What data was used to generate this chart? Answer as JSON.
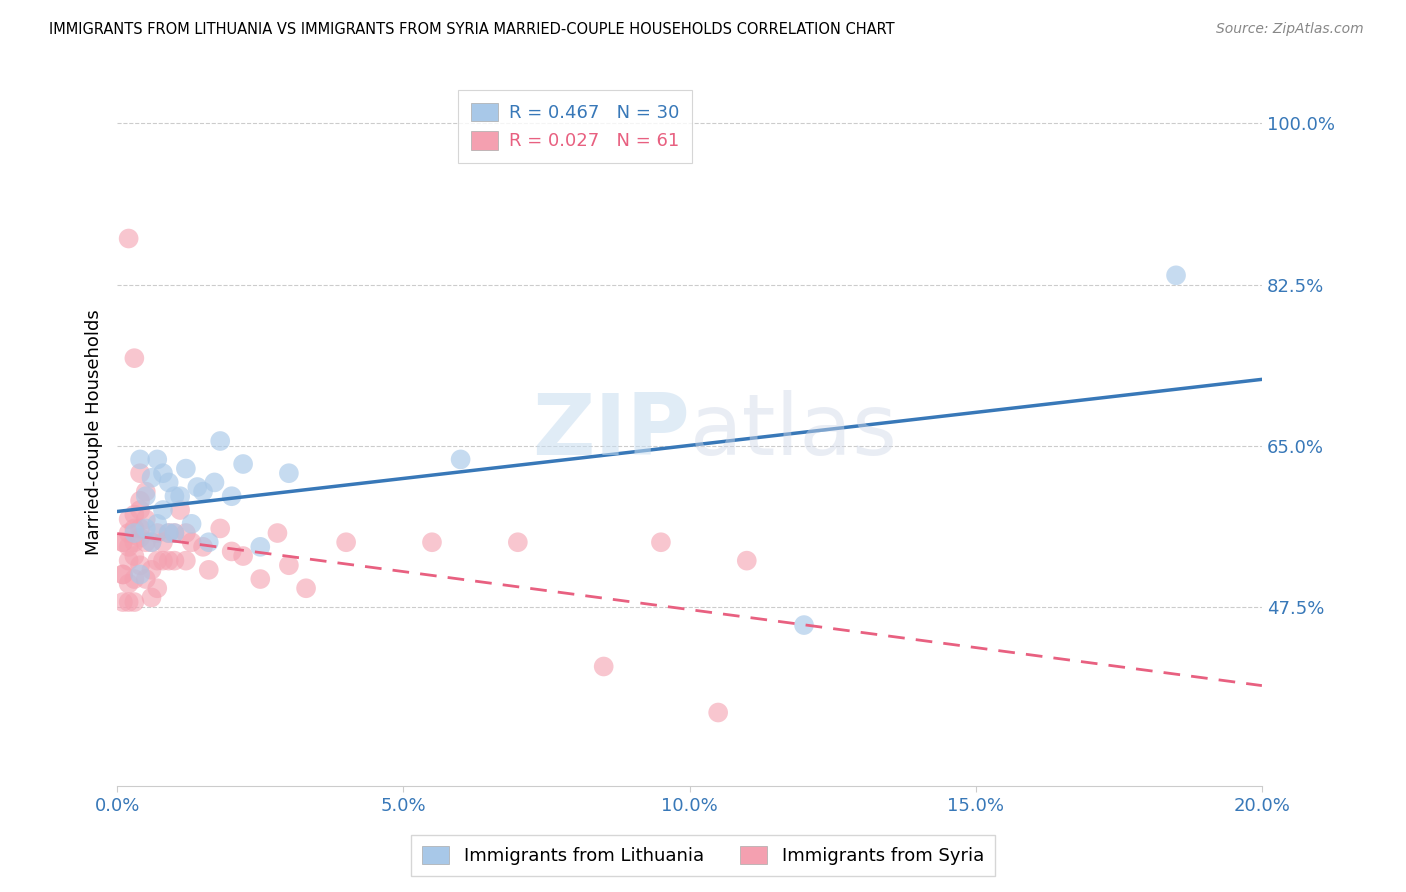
{
  "title": "IMMIGRANTS FROM LITHUANIA VS IMMIGRANTS FROM SYRIA MARRIED-COUPLE HOUSEHOLDS CORRELATION CHART",
  "source": "Source: ZipAtlas.com",
  "ylabel": "Married-couple Households",
  "xmin": 0.0,
  "xmax": 0.2,
  "ymin": 0.28,
  "ymax": 1.05,
  "ylabel_right_ticks": [
    1.0,
    0.825,
    0.65,
    0.475
  ],
  "ylabel_right_labels": [
    "100.0%",
    "82.5%",
    "65.0%",
    "47.5%"
  ],
  "xtick_labels": [
    "0.0%",
    "5.0%",
    "10.0%",
    "15.0%",
    "20.0%"
  ],
  "xtick_positions": [
    0.0,
    0.05,
    0.1,
    0.15,
    0.2
  ],
  "legend_R_blue": "R = 0.467",
  "legend_N_blue": "N = 30",
  "legend_R_pink": "R = 0.027",
  "legend_N_pink": "N = 61",
  "blue_color": "#a8c8e8",
  "pink_color": "#f4a0b0",
  "blue_line_color": "#3878b8",
  "pink_line_color": "#e86080",
  "watermark_zip": "ZIP",
  "watermark_atlas": "atlas",
  "lithuania_x": [
    0.003,
    0.004,
    0.004,
    0.005,
    0.005,
    0.006,
    0.006,
    0.007,
    0.007,
    0.008,
    0.008,
    0.009,
    0.009,
    0.01,
    0.01,
    0.011,
    0.012,
    0.013,
    0.014,
    0.015,
    0.016,
    0.017,
    0.018,
    0.02,
    0.022,
    0.025,
    0.03,
    0.06,
    0.12,
    0.185
  ],
  "lithuania_y": [
    0.555,
    0.635,
    0.51,
    0.595,
    0.56,
    0.615,
    0.545,
    0.635,
    0.565,
    0.62,
    0.58,
    0.555,
    0.61,
    0.595,
    0.555,
    0.595,
    0.625,
    0.565,
    0.605,
    0.6,
    0.545,
    0.61,
    0.655,
    0.595,
    0.63,
    0.54,
    0.62,
    0.635,
    0.455,
    0.835
  ],
  "syria_x": [
    0.001,
    0.001,
    0.001,
    0.001,
    0.001,
    0.002,
    0.002,
    0.002,
    0.002,
    0.002,
    0.002,
    0.002,
    0.003,
    0.003,
    0.003,
    0.003,
    0.003,
    0.003,
    0.003,
    0.004,
    0.004,
    0.004,
    0.004,
    0.004,
    0.004,
    0.005,
    0.005,
    0.005,
    0.005,
    0.006,
    0.006,
    0.006,
    0.007,
    0.007,
    0.007,
    0.008,
    0.008,
    0.009,
    0.009,
    0.01,
    0.01,
    0.011,
    0.012,
    0.012,
    0.013,
    0.015,
    0.016,
    0.018,
    0.02,
    0.022,
    0.025,
    0.028,
    0.03,
    0.033,
    0.04,
    0.055,
    0.07,
    0.085,
    0.095,
    0.105,
    0.11
  ],
  "syria_y": [
    0.545,
    0.51,
    0.48,
    0.545,
    0.51,
    0.555,
    0.525,
    0.5,
    0.48,
    0.875,
    0.57,
    0.54,
    0.56,
    0.53,
    0.505,
    0.48,
    0.745,
    0.575,
    0.545,
    0.58,
    0.55,
    0.52,
    0.62,
    0.59,
    0.56,
    0.6,
    0.57,
    0.545,
    0.505,
    0.545,
    0.515,
    0.485,
    0.555,
    0.525,
    0.495,
    0.545,
    0.525,
    0.555,
    0.525,
    0.555,
    0.525,
    0.58,
    0.555,
    0.525,
    0.545,
    0.54,
    0.515,
    0.56,
    0.535,
    0.53,
    0.505,
    0.555,
    0.52,
    0.495,
    0.545,
    0.545,
    0.545,
    0.41,
    0.545,
    0.36,
    0.525
  ]
}
